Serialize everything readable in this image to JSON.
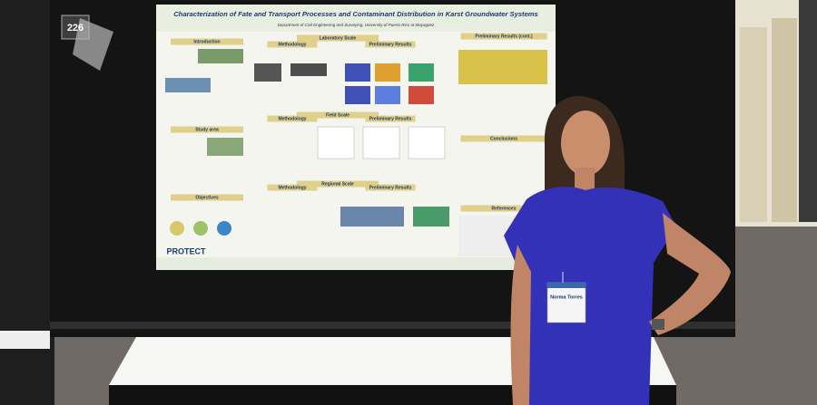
{
  "poster": {
    "number": "226",
    "title": "Characterization of Fate and Transport Processes and Contaminant Distribution in Karst Groundwater Systems",
    "affiliation": "Department of Civil Engineering and Surveying, University of Puerto Rico at Mayagüez",
    "sections": [
      "Introduction",
      "Laboratory Scale",
      "Methodology",
      "Preliminary Results",
      "Field Scale",
      "Methodology",
      "Preliminary Results",
      "Study area",
      "Regional Scale",
      "Methodology",
      "Preliminary Results",
      "Objectives",
      "Preliminary Results (cont.)",
      "Conclusions",
      "References"
    ],
    "logo": "PROTECT"
  },
  "badge": {
    "name": "Norma Torres"
  }
}
